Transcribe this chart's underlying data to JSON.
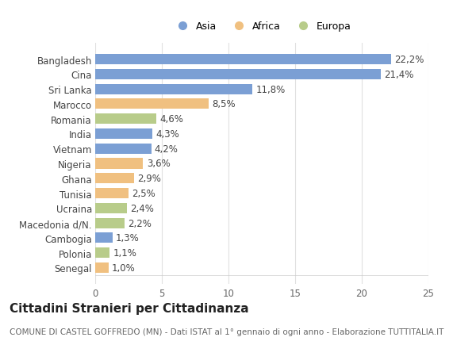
{
  "categories": [
    "Bangladesh",
    "Cina",
    "Sri Lanka",
    "Marocco",
    "Romania",
    "India",
    "Vietnam",
    "Nigeria",
    "Ghana",
    "Tunisia",
    "Ucraina",
    "Macedonia d/N.",
    "Cambogia",
    "Polonia",
    "Senegal"
  ],
  "values": [
    22.2,
    21.4,
    11.8,
    8.5,
    4.6,
    4.3,
    4.2,
    3.6,
    2.9,
    2.5,
    2.4,
    2.2,
    1.3,
    1.1,
    1.0
  ],
  "labels": [
    "22,2%",
    "21,4%",
    "11,8%",
    "8,5%",
    "4,6%",
    "4,3%",
    "4,2%",
    "3,6%",
    "2,9%",
    "2,5%",
    "2,4%",
    "2,2%",
    "1,3%",
    "1,1%",
    "1,0%"
  ],
  "regions": [
    "Asia",
    "Asia",
    "Asia",
    "Africa",
    "Europa",
    "Asia",
    "Asia",
    "Africa",
    "Africa",
    "Africa",
    "Europa",
    "Europa",
    "Asia",
    "Europa",
    "Africa"
  ],
  "colors": {
    "Asia": "#7b9fd4",
    "Africa": "#f0c080",
    "Europa": "#b8cc8a"
  },
  "legend_labels": [
    "Asia",
    "Africa",
    "Europa"
  ],
  "title": "Cittadini Stranieri per Cittadinanza",
  "subtitle": "COMUNE DI CASTEL GOFFREDO (MN) - Dati ISTAT al 1° gennaio di ogni anno - Elaborazione TUTTITALIA.IT",
  "xlim": [
    0,
    25
  ],
  "xticks": [
    0,
    5,
    10,
    15,
    20,
    25
  ],
  "background_color": "#ffffff",
  "plot_bg_color": "#ffffff",
  "bar_height": 0.7,
  "title_fontsize": 11,
  "subtitle_fontsize": 7.5,
  "tick_fontsize": 8.5,
  "label_fontsize": 8.5,
  "legend_fontsize": 9
}
